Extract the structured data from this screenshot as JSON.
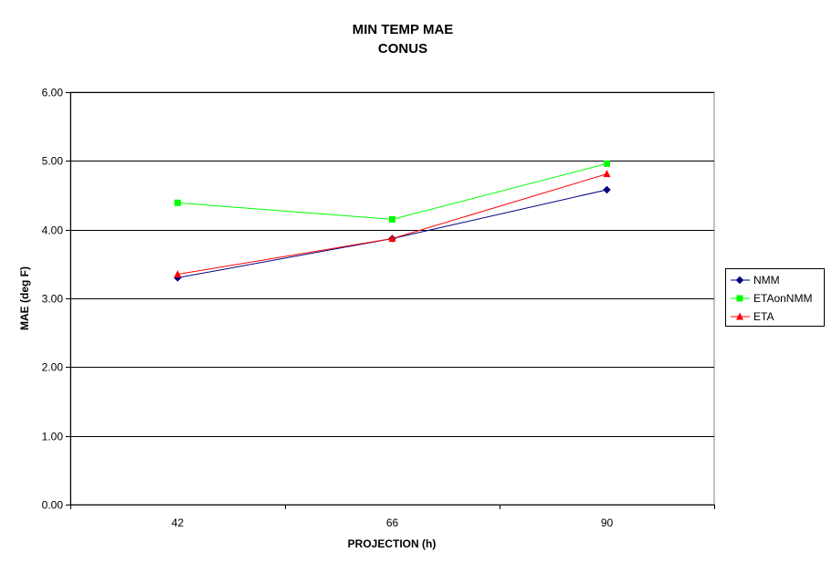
{
  "chart_data": {
    "type": "line",
    "title": "MIN TEMP MAE",
    "subtitle": "CONUS",
    "xlabel": "PROJECTION (h)",
    "ylabel": "MAE (deg F)",
    "categories": [
      "42",
      "66",
      "90"
    ],
    "ylim": [
      0,
      6
    ],
    "yticks": [
      "0.00",
      "1.00",
      "2.00",
      "3.00",
      "4.00",
      "5.00",
      "6.00"
    ],
    "grid": true,
    "legend_position": "right",
    "series": [
      {
        "name": "NMM",
        "values": [
          3.3,
          3.87,
          4.58
        ],
        "color": "#000080",
        "marker": "diamond"
      },
      {
        "name": "ETAonNMM",
        "values": [
          4.39,
          4.15,
          4.96
        ],
        "color": "#00ff00",
        "marker": "square"
      },
      {
        "name": "ETA",
        "values": [
          3.35,
          3.87,
          4.81
        ],
        "color": "#ff0000",
        "marker": "triangle"
      }
    ]
  }
}
